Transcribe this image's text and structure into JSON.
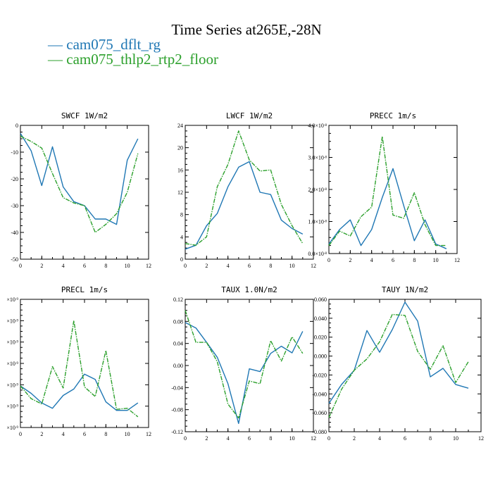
{
  "figure": {
    "title": "Time Series at265E,-28N",
    "legend": [
      {
        "label": "cam075_dflt_rg",
        "color": "#1f77b4"
      },
      {
        "label": "cam075_thlp2_rtp2_floor",
        "color": "#2ca02c"
      }
    ]
  },
  "chart_data": [
    {
      "type": "line",
      "title": "SWCF   1W/m2",
      "x": [
        0,
        1,
        2,
        3,
        4,
        5,
        6,
        7,
        8,
        9,
        10,
        11
      ],
      "xlim": [
        0,
        12
      ],
      "xticks": [
        "0",
        "2",
        "4",
        "6",
        "8",
        "10",
        "12"
      ],
      "ylim": [
        -50,
        0
      ],
      "yticks": [
        "-50",
        "-40",
        "-30",
        "-20",
        "-10",
        "0"
      ],
      "series": [
        {
          "name": "cam075_dflt_rg",
          "values": [
            -3,
            -9.5,
            -22.5,
            -8,
            -23,
            -28.5,
            -30,
            -35,
            -35,
            -37,
            -13,
            -5
          ]
        },
        {
          "name": "cam075_thlp2_rtp2_floor",
          "values": [
            -4,
            -6,
            -8.5,
            -18,
            -27,
            -29,
            -30,
            -40,
            -37,
            -33,
            -25,
            -10.5
          ]
        }
      ]
    },
    {
      "type": "line",
      "title": "LWCF   1W/m2",
      "x": [
        0,
        1,
        2,
        3,
        4,
        5,
        6,
        7,
        8,
        9,
        10,
        11
      ],
      "xlim": [
        0,
        12
      ],
      "xticks": [
        "0",
        "2",
        "4",
        "6",
        "8",
        "10",
        "12"
      ],
      "ylim": [
        0,
        24
      ],
      "yticks": [
        "0",
        "4",
        "8",
        "12",
        "16",
        "20",
        "24"
      ],
      "series": [
        {
          "name": "cam075_dflt_rg",
          "values": [
            1.8,
            2.5,
            6,
            8.2,
            13,
            16.5,
            17.5,
            12,
            11.6,
            7,
            5.5,
            4.5
          ]
        },
        {
          "name": "cam075_thlp2_rtp2_floor",
          "values": [
            2.8,
            2.5,
            4,
            13,
            17,
            23,
            17.8,
            15.8,
            16,
            9.8,
            6,
            2.8
          ]
        }
      ]
    },
    {
      "type": "line",
      "title": "PRECC   1m/s",
      "x": [
        0,
        1,
        2,
        3,
        4,
        5,
        6,
        7,
        8,
        9,
        10,
        11
      ],
      "xlim": [
        0,
        12
      ],
      "xticks": [
        "0",
        "2",
        "4",
        "6",
        "8",
        "10",
        "12"
      ],
      "ylim": [
        0,
        4
      ],
      "ytick_values": [
        0,
        1,
        2,
        3,
        4
      ],
      "ytick_mantissas": [
        "0.0",
        "1.0",
        "2.0",
        "3.0",
        "4.0"
      ],
      "ytick_suffix": "×10",
      "ytick_exponent": "-8",
      "y_multiplier": "1e-8",
      "series": [
        {
          "name": "cam075_dflt_rg",
          "values": [
            0.3,
            0.75,
            1.05,
            0.25,
            0.75,
            1.75,
            2.65,
            1.5,
            0.4,
            1.05,
            0.3,
            0.15
          ]
        },
        {
          "name": "cam075_thlp2_rtp2_floor",
          "values": [
            0.25,
            0.7,
            0.55,
            1.15,
            1.45,
            3.65,
            1.2,
            1.1,
            1.9,
            0.9,
            0.25,
            0.25
          ]
        }
      ]
    },
    {
      "type": "line",
      "title": "PRECL   1m/s",
      "x": [
        0,
        1,
        2,
        3,
        4,
        5,
        6,
        7,
        8,
        9,
        10,
        11
      ],
      "xlim": [
        0,
        12
      ],
      "xticks": [
        "0",
        "2",
        "4",
        "6",
        "8",
        "10",
        "12"
      ],
      "ylim": [
        0,
        6
      ],
      "ytick_values": [
        0,
        1,
        2,
        3,
        4,
        5,
        6
      ],
      "ytick_mantissas": [
        "",
        "",
        "",
        "",
        "",
        "",
        ""
      ],
      "ytick_suffix": "×10",
      "ytick_exponent": "-9",
      "y_multiplier": "1e-9",
      "series": [
        {
          "name": "cam075_dflt_rg",
          "values": [
            1.95,
            1.6,
            1.15,
            0.9,
            1.5,
            1.8,
            2.5,
            2.25,
            1.2,
            0.8,
            0.8,
            1.15
          ]
        },
        {
          "name": "cam075_thlp2_rtp2_floor",
          "values": [
            1.95,
            1.35,
            1.1,
            2.85,
            1.85,
            5.0,
            1.9,
            1.45,
            3.6,
            0.85,
            0.9,
            0.5
          ]
        }
      ]
    },
    {
      "type": "line",
      "title": "TAUX   1.0N/m2",
      "x": [
        0,
        1,
        2,
        3,
        4,
        5,
        6,
        7,
        8,
        9,
        10,
        11
      ],
      "xlim": [
        0,
        12
      ],
      "xticks": [
        "0",
        "2",
        "4",
        "6",
        "8",
        "10",
        "12"
      ],
      "ylim": [
        -0.12,
        0.12
      ],
      "yticks": [
        "-0.12",
        "-0.08",
        "-0.04",
        "0.00",
        "0.04",
        "0.08",
        "0.12"
      ],
      "series": [
        {
          "name": "cam075_dflt_rg",
          "values": [
            0.078,
            0.068,
            0.042,
            0.015,
            -0.033,
            -0.105,
            -0.006,
            -0.011,
            0.022,
            0.035,
            0.023,
            0.062
          ]
        },
        {
          "name": "cam075_thlp2_rtp2_floor",
          "values": [
            0.1,
            0.042,
            0.042,
            0.007,
            -0.07,
            -0.095,
            -0.028,
            -0.033,
            0.045,
            0.008,
            0.052,
            0.022
          ]
        }
      ]
    },
    {
      "type": "line",
      "title": "TAUY   1N/m2",
      "x": [
        0,
        1,
        2,
        3,
        4,
        5,
        6,
        7,
        8,
        9,
        10,
        11
      ],
      "xlim": [
        0,
        12
      ],
      "xticks": [
        "0",
        "2",
        "4",
        "6",
        "8",
        "10",
        "12"
      ],
      "ylim": [
        -0.08,
        0.06
      ],
      "yticks": [
        "-0.080",
        "-0.060",
        "-0.040",
        "-0.020",
        "0.000",
        "0.020",
        "0.040",
        "0.060"
      ],
      "series": [
        {
          "name": "cam075_dflt_rg",
          "values": [
            -0.05,
            -0.03,
            -0.015,
            0.027,
            0.004,
            0.028,
            0.057,
            0.037,
            -0.022,
            -0.013,
            -0.03,
            -0.034
          ]
        },
        {
          "name": "cam075_thlp2_rtp2_floor",
          "values": [
            -0.065,
            -0.035,
            -0.015,
            -0.003,
            0.015,
            0.044,
            0.043,
            0.005,
            -0.014,
            0.011,
            -0.028,
            -0.006
          ]
        }
      ]
    }
  ]
}
